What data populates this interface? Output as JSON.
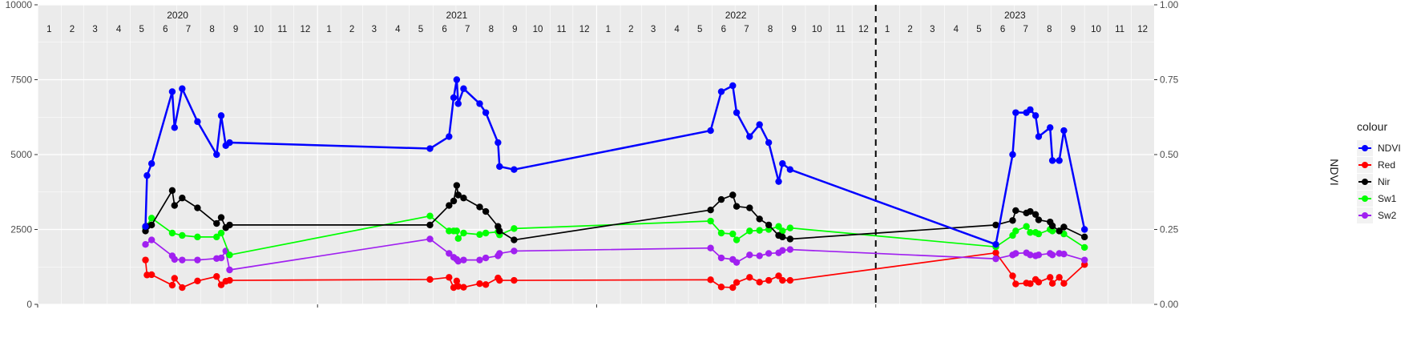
{
  "chart_data": {
    "type": "line",
    "x_type": "date",
    "xlim": [
      "2020-01-01",
      "2023-12-31"
    ],
    "ylim": [
      0,
      10000
    ],
    "y_ticks": [
      0,
      2500,
      5000,
      7500,
      10000
    ],
    "y_tick_labels": [
      "0",
      "2500",
      "5000",
      "7500",
      "10000"
    ],
    "y2_label": "NDVI",
    "y2_ticks": [
      0,
      0.25,
      0.5,
      0.75,
      1.0
    ],
    "y2_tick_labels": [
      "0.00",
      "0.25",
      "0.50",
      "0.75",
      "1.00"
    ],
    "years": [
      "2020",
      "2021",
      "2022",
      "2023"
    ],
    "months": [
      "1",
      "2",
      "3",
      "4",
      "5",
      "6",
      "7",
      "8",
      "9",
      "10",
      "11",
      "12"
    ],
    "vline_date": "2023-01-01",
    "grid": true,
    "legend_title": "colour",
    "legend_position": "right",
    "series": [
      {
        "name": "NDVI",
        "color": "#0000ff",
        "axis": "right",
        "points": [
          [
            "2020-05-21",
            0.26
          ],
          [
            "2020-05-23",
            0.43
          ],
          [
            "2020-05-29",
            0.47
          ],
          [
            "2020-06-25",
            0.71
          ],
          [
            "2020-06-28",
            0.59
          ],
          [
            "2020-07-08",
            0.72
          ],
          [
            "2020-07-28",
            0.61
          ],
          [
            "2020-08-22",
            0.5
          ],
          [
            "2020-08-28",
            0.63
          ],
          [
            "2020-09-03",
            0.53
          ],
          [
            "2020-09-08",
            0.54
          ],
          [
            "2021-05-28",
            0.52
          ],
          [
            "2021-06-22",
            0.56
          ],
          [
            "2021-06-28",
            0.69
          ],
          [
            "2021-07-02",
            0.75
          ],
          [
            "2021-07-04",
            0.67
          ],
          [
            "2021-07-11",
            0.72
          ],
          [
            "2021-08-01",
            0.67
          ],
          [
            "2021-08-09",
            0.64
          ],
          [
            "2021-08-25",
            0.54
          ],
          [
            "2021-08-27",
            0.46
          ],
          [
            "2021-09-15",
            0.45
          ],
          [
            "2022-05-30",
            0.58
          ],
          [
            "2022-06-13",
            0.71
          ],
          [
            "2022-06-28",
            0.73
          ],
          [
            "2022-07-03",
            0.64
          ],
          [
            "2022-07-20",
            0.56
          ],
          [
            "2022-08-02",
            0.6
          ],
          [
            "2022-08-14",
            0.54
          ],
          [
            "2022-08-27",
            0.41
          ],
          [
            "2022-09-01",
            0.47
          ],
          [
            "2022-09-11",
            0.45
          ],
          [
            "2023-06-07",
            0.2
          ],
          [
            "2023-06-29",
            0.5
          ],
          [
            "2023-07-03",
            0.64
          ],
          [
            "2023-07-17",
            0.64
          ],
          [
            "2023-07-22",
            0.65
          ],
          [
            "2023-07-29",
            0.63
          ],
          [
            "2023-08-02",
            0.56
          ],
          [
            "2023-08-17",
            0.59
          ],
          [
            "2023-08-20",
            0.48
          ],
          [
            "2023-08-29",
            0.48
          ],
          [
            "2023-09-04",
            0.58
          ],
          [
            "2023-10-01",
            0.25
          ]
        ]
      },
      {
        "name": "Red",
        "color": "#ff0000",
        "axis": "left",
        "points": [
          [
            "2020-05-21",
            1480
          ],
          [
            "2020-05-23",
            980
          ],
          [
            "2020-05-29",
            990
          ],
          [
            "2020-06-25",
            640
          ],
          [
            "2020-06-28",
            870
          ],
          [
            "2020-07-08",
            560
          ],
          [
            "2020-07-28",
            780
          ],
          [
            "2020-08-22",
            930
          ],
          [
            "2020-08-28",
            650
          ],
          [
            "2020-09-03",
            770
          ],
          [
            "2020-09-08",
            800
          ],
          [
            "2021-05-28",
            830
          ],
          [
            "2021-06-22",
            900
          ],
          [
            "2021-06-28",
            560
          ],
          [
            "2021-07-02",
            780
          ],
          [
            "2021-07-04",
            600
          ],
          [
            "2021-07-11",
            570
          ],
          [
            "2021-08-01",
            690
          ],
          [
            "2021-08-09",
            660
          ],
          [
            "2021-08-25",
            880
          ],
          [
            "2021-08-27",
            800
          ],
          [
            "2021-09-15",
            800
          ],
          [
            "2022-05-30",
            820
          ],
          [
            "2022-06-13",
            580
          ],
          [
            "2022-06-28",
            560
          ],
          [
            "2022-07-03",
            730
          ],
          [
            "2022-07-20",
            900
          ],
          [
            "2022-08-02",
            740
          ],
          [
            "2022-08-14",
            800
          ],
          [
            "2022-08-27",
            950
          ],
          [
            "2022-09-01",
            800
          ],
          [
            "2022-09-11",
            800
          ],
          [
            "2023-06-07",
            1720
          ],
          [
            "2023-06-29",
            950
          ],
          [
            "2023-07-03",
            680
          ],
          [
            "2023-07-17",
            710
          ],
          [
            "2023-07-22",
            690
          ],
          [
            "2023-07-29",
            830
          ],
          [
            "2023-08-02",
            740
          ],
          [
            "2023-08-17",
            900
          ],
          [
            "2023-08-20",
            700
          ],
          [
            "2023-08-29",
            900
          ],
          [
            "2023-09-04",
            700
          ],
          [
            "2023-10-01",
            1330
          ]
        ]
      },
      {
        "name": "Nir",
        "color": "#000000",
        "axis": "left",
        "points": [
          [
            "2020-05-21",
            2450
          ],
          [
            "2020-05-23",
            2600
          ],
          [
            "2020-05-29",
            2650
          ],
          [
            "2020-06-25",
            3800
          ],
          [
            "2020-06-28",
            3300
          ],
          [
            "2020-07-08",
            3550
          ],
          [
            "2020-07-28",
            3220
          ],
          [
            "2020-08-22",
            2700
          ],
          [
            "2020-08-28",
            2900
          ],
          [
            "2020-09-03",
            2560
          ],
          [
            "2020-09-08",
            2650
          ],
          [
            "2021-05-28",
            2650
          ],
          [
            "2021-06-22",
            3300
          ],
          [
            "2021-06-28",
            3450
          ],
          [
            "2021-07-02",
            3970
          ],
          [
            "2021-07-04",
            3650
          ],
          [
            "2021-07-11",
            3550
          ],
          [
            "2021-08-01",
            3250
          ],
          [
            "2021-08-09",
            3100
          ],
          [
            "2021-08-25",
            2600
          ],
          [
            "2021-08-27",
            2450
          ],
          [
            "2021-09-15",
            2150
          ],
          [
            "2022-05-30",
            3150
          ],
          [
            "2022-06-13",
            3500
          ],
          [
            "2022-06-28",
            3650
          ],
          [
            "2022-07-03",
            3270
          ],
          [
            "2022-07-20",
            3220
          ],
          [
            "2022-08-02",
            2850
          ],
          [
            "2022-08-14",
            2650
          ],
          [
            "2022-08-27",
            2300
          ],
          [
            "2022-09-01",
            2250
          ],
          [
            "2022-09-11",
            2180
          ],
          [
            "2023-06-07",
            2650
          ],
          [
            "2023-06-29",
            2800
          ],
          [
            "2023-07-03",
            3130
          ],
          [
            "2023-07-17",
            3050
          ],
          [
            "2023-07-22",
            3100
          ],
          [
            "2023-07-29",
            3000
          ],
          [
            "2023-08-02",
            2820
          ],
          [
            "2023-08-17",
            2750
          ],
          [
            "2023-08-20",
            2620
          ],
          [
            "2023-08-29",
            2450
          ],
          [
            "2023-09-04",
            2580
          ],
          [
            "2023-10-01",
            2250
          ]
        ]
      },
      {
        "name": "Sw1",
        "color": "#00ff00",
        "axis": "left",
        "points": [
          [
            "2020-05-21",
            2550
          ],
          [
            "2020-05-29",
            2880
          ],
          [
            "2020-06-25",
            2380
          ],
          [
            "2020-07-08",
            2300
          ],
          [
            "2020-07-28",
            2250
          ],
          [
            "2020-08-22",
            2250
          ],
          [
            "2020-08-28",
            2380
          ],
          [
            "2020-09-08",
            1650
          ],
          [
            "2021-05-28",
            2950
          ],
          [
            "2021-06-22",
            2450
          ],
          [
            "2021-06-28",
            2450
          ],
          [
            "2021-07-02",
            2450
          ],
          [
            "2021-07-04",
            2200
          ],
          [
            "2021-07-11",
            2380
          ],
          [
            "2021-08-01",
            2330
          ],
          [
            "2021-08-09",
            2380
          ],
          [
            "2021-08-25",
            2420
          ],
          [
            "2021-08-27",
            2320
          ],
          [
            "2021-09-15",
            2530
          ],
          [
            "2022-05-30",
            2780
          ],
          [
            "2022-06-13",
            2380
          ],
          [
            "2022-06-28",
            2350
          ],
          [
            "2022-07-03",
            2150
          ],
          [
            "2022-07-20",
            2450
          ],
          [
            "2022-08-02",
            2470
          ],
          [
            "2022-08-14",
            2500
          ],
          [
            "2022-08-27",
            2600
          ],
          [
            "2022-09-01",
            2450
          ],
          [
            "2022-09-11",
            2550
          ],
          [
            "2023-06-07",
            1920
          ],
          [
            "2023-06-29",
            2300
          ],
          [
            "2023-07-03",
            2450
          ],
          [
            "2023-07-17",
            2600
          ],
          [
            "2023-07-22",
            2400
          ],
          [
            "2023-07-29",
            2400
          ],
          [
            "2023-08-02",
            2350
          ],
          [
            "2023-08-17",
            2500
          ],
          [
            "2023-08-20",
            2450
          ],
          [
            "2023-08-29",
            2450
          ],
          [
            "2023-09-04",
            2350
          ],
          [
            "2023-10-01",
            1900
          ]
        ]
      },
      {
        "name": "Sw2",
        "color": "#a020f0",
        "axis": "left",
        "points": [
          [
            "2020-05-21",
            2000
          ],
          [
            "2020-05-29",
            2150
          ],
          [
            "2020-06-25",
            1620
          ],
          [
            "2020-06-28",
            1500
          ],
          [
            "2020-07-08",
            1480
          ],
          [
            "2020-07-28",
            1480
          ],
          [
            "2020-08-22",
            1530
          ],
          [
            "2020-08-28",
            1550
          ],
          [
            "2020-09-03",
            1780
          ],
          [
            "2020-09-08",
            1150
          ],
          [
            "2021-05-28",
            2180
          ],
          [
            "2021-06-22",
            1700
          ],
          [
            "2021-06-28",
            1570
          ],
          [
            "2021-07-02",
            1500
          ],
          [
            "2021-07-04",
            1440
          ],
          [
            "2021-07-11",
            1480
          ],
          [
            "2021-08-01",
            1480
          ],
          [
            "2021-08-09",
            1550
          ],
          [
            "2021-08-25",
            1620
          ],
          [
            "2021-08-27",
            1700
          ],
          [
            "2021-09-15",
            1780
          ],
          [
            "2022-05-30",
            1880
          ],
          [
            "2022-06-13",
            1550
          ],
          [
            "2022-06-28",
            1500
          ],
          [
            "2022-07-03",
            1400
          ],
          [
            "2022-07-20",
            1650
          ],
          [
            "2022-08-02",
            1620
          ],
          [
            "2022-08-14",
            1700
          ],
          [
            "2022-08-27",
            1720
          ],
          [
            "2022-09-01",
            1800
          ],
          [
            "2022-09-11",
            1830
          ],
          [
            "2023-06-07",
            1520
          ],
          [
            "2023-06-29",
            1650
          ],
          [
            "2023-07-03",
            1700
          ],
          [
            "2023-07-17",
            1720
          ],
          [
            "2023-07-22",
            1650
          ],
          [
            "2023-07-29",
            1620
          ],
          [
            "2023-08-02",
            1650
          ],
          [
            "2023-08-17",
            1700
          ],
          [
            "2023-08-20",
            1650
          ],
          [
            "2023-08-29",
            1700
          ],
          [
            "2023-09-04",
            1680
          ],
          [
            "2023-10-01",
            1480
          ]
        ]
      }
    ]
  }
}
